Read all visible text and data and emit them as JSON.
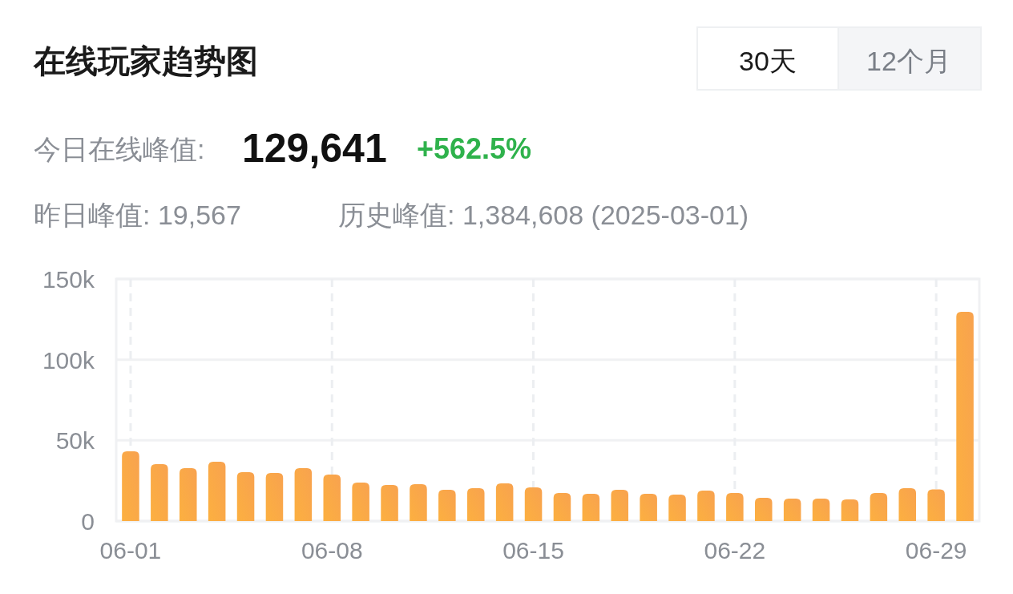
{
  "chart_data": {
    "type": "bar",
    "title": "在线玩家趋势图",
    "annotations": [
      "30天",
      "12个月",
      "今日在线峰值:",
      "129,641",
      "+562.5%",
      "昨日峰值: 19,567",
      "历史峰值: 1,384,608 (2025-03-01)"
    ],
    "categories": [
      "06-01",
      null,
      null,
      null,
      null,
      null,
      null,
      "06-08",
      null,
      null,
      null,
      null,
      null,
      null,
      "06-15",
      null,
      null,
      null,
      null,
      null,
      null,
      "06-22",
      null,
      null,
      null,
      null,
      null,
      null,
      "06-29",
      null
    ],
    "values": [
      43200,
      35300,
      32800,
      36800,
      30300,
      29800,
      32800,
      28800,
      23800,
      22400,
      22800,
      19400,
      20400,
      23300,
      20900,
      17400,
      16900,
      19400,
      16900,
      16400,
      18900,
      17400,
      14400,
      13900,
      13900,
      13400,
      17400,
      20400,
      19567,
      129641
    ],
    "color": "#f8a24f",
    "ylim": [
      0,
      150000
    ],
    "yticks": [
      0,
      {
        "value": 50000,
        "label": "50k"
      },
      {
        "value": 100000,
        "label": "100k"
      },
      {
        "value": 150000,
        "label": "150k"
      }
    ],
    "grid": true
  }
}
